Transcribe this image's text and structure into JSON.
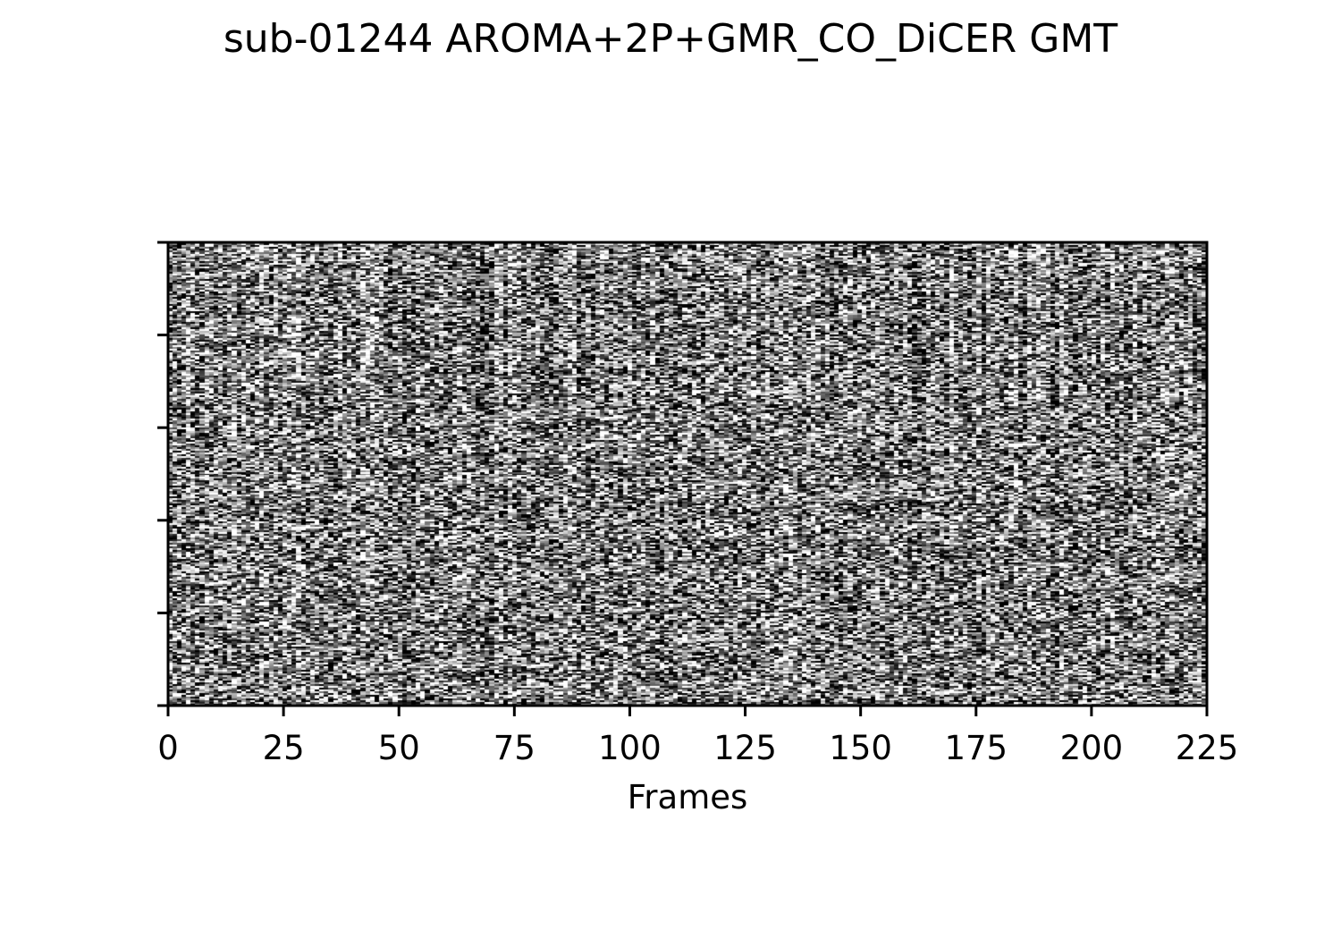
{
  "chart_data": {
    "type": "heatmap",
    "title": "sub-01244 AROMA+2P+GMR_CO_DiCER GMT",
    "xlabel": "Frames",
    "ylabel": "",
    "xlim": [
      0,
      225
    ],
    "x_ticks": [
      0,
      25,
      50,
      75,
      100,
      125,
      150,
      175,
      200,
      225
    ],
    "x_tick_labels": [
      "0",
      "25",
      "50",
      "75",
      "100",
      "125",
      "150",
      "175",
      "200",
      "225"
    ],
    "y_tick_count": 6,
    "y_tick_labels": [],
    "colormap": "gray",
    "grid": false,
    "legend": "none",
    "description_values": "voxel-wise carpet plot of normalized BOLD signal (grayscale noise texture)"
  }
}
